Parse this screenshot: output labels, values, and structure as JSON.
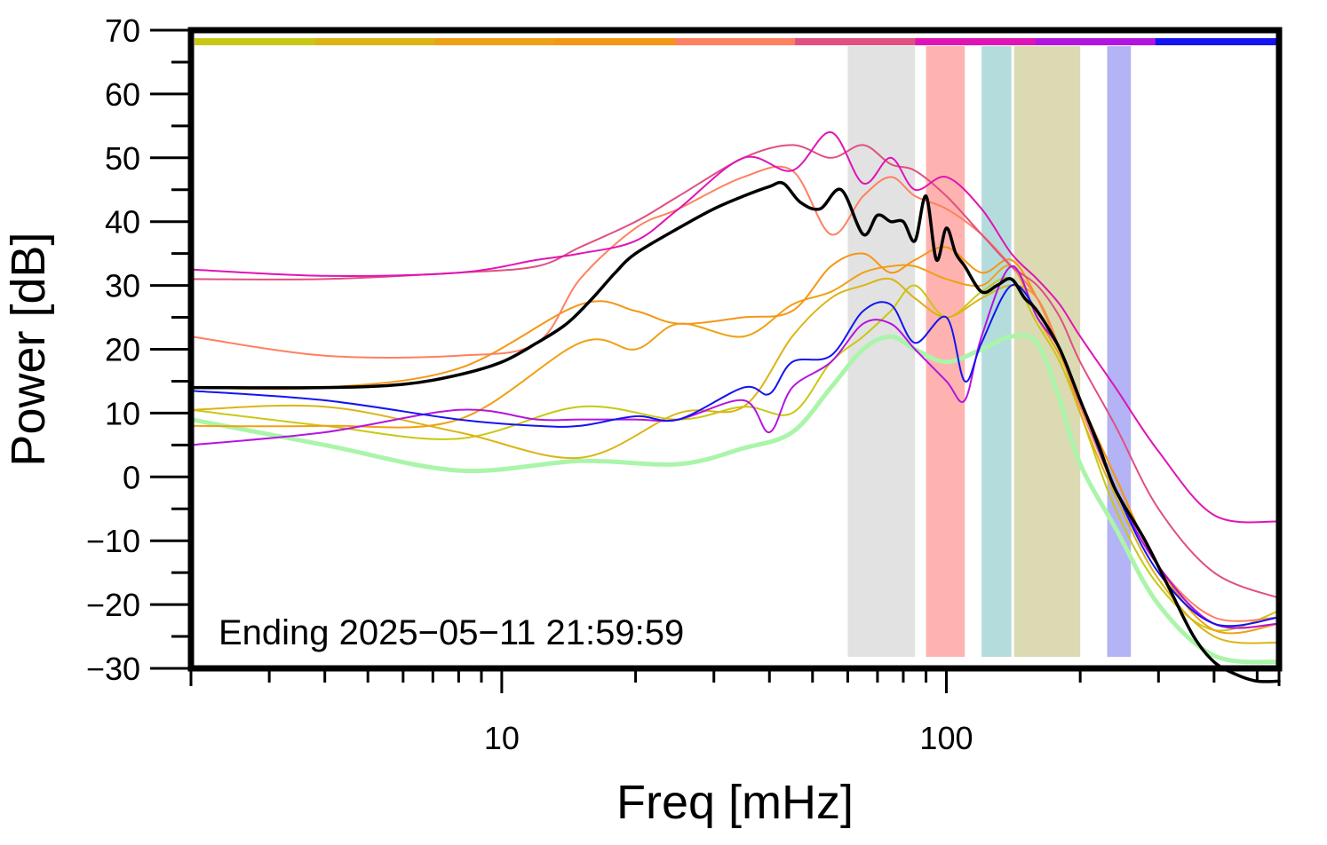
{
  "chart_data": {
    "type": "line",
    "xlabel": "Freq [mHz]",
    "ylabel": "Power [dB]",
    "xscale": "log",
    "xlim": [
      2,
      560
    ],
    "ylim": [
      -30,
      70
    ],
    "grid": false,
    "xticks_major": [
      10,
      100
    ],
    "xticks_major_labels": [
      "10",
      "100"
    ],
    "xticks_minor": [
      3,
      4,
      5,
      6,
      7,
      8,
      9,
      20,
      30,
      40,
      50,
      60,
      70,
      80,
      90,
      200,
      300,
      400,
      500
    ],
    "yticks": [
      70,
      60,
      50,
      40,
      30,
      20,
      10,
      0,
      -10,
      -20,
      -30
    ],
    "ytick_labels": [
      "70",
      "60",
      "50",
      "40",
      "30",
      "20",
      "10",
      "0",
      "−10",
      "−20",
      "−30"
    ],
    "annotation": "Ending 2025−05−11 21:59:59",
    "bands": [
      {
        "x0": 60,
        "x1": 85,
        "color": "#e2e2e2"
      },
      {
        "x0": 90,
        "x1": 110,
        "color": "#ffb3b0"
      },
      {
        "x0": 120,
        "x1": 140,
        "color": "#b5dcdc"
      },
      {
        "x0": 142,
        "x1": 200,
        "color": "#dcdab3"
      },
      {
        "x0": 230,
        "x1": 260,
        "color": "#b3b3f5"
      }
    ],
    "color_bar": [
      "#c8c814",
      "#dcb414",
      "#f0a014",
      "#f59614",
      "#ff8060",
      "#e05080",
      "#e014b4",
      "#b414e0",
      "#1414f0"
    ],
    "series": [
      {
        "color": "#aaf5aa",
        "width": 5,
        "x": [
          2,
          4,
          8,
          15,
          25,
          35,
          45,
          55,
          65,
          75,
          85,
          100,
          120,
          140,
          160,
          180,
          200,
          240,
          300,
          400,
          560
        ],
        "y": [
          9,
          5,
          1,
          2.5,
          2,
          4.5,
          7,
          14,
          20,
          22,
          20,
          18,
          20,
          22,
          21,
          12,
          2,
          -8,
          -20,
          -28,
          -29
        ]
      },
      {
        "color": "#c8c814",
        "width": 2,
        "x": [
          2,
          4,
          8,
          15,
          25,
          35,
          45,
          55,
          65,
          75,
          85,
          100,
          120,
          140,
          160,
          180,
          200,
          240,
          300,
          400,
          560
        ],
        "y": [
          10.5,
          8,
          6,
          11,
          9,
          11,
          10,
          18,
          22,
          26,
          30,
          25,
          29,
          31,
          24,
          18,
          10,
          -5,
          -17,
          -24,
          -21
        ]
      },
      {
        "color": "#dcb414",
        "width": 2,
        "x": [
          2,
          4,
          8,
          15,
          25,
          35,
          45,
          55,
          65,
          75,
          85,
          100,
          120,
          140,
          160,
          180,
          200,
          240,
          300,
          400,
          560
        ],
        "y": [
          10.5,
          11,
          7,
          3,
          10,
          11,
          22,
          28,
          30,
          31,
          28,
          25,
          28,
          30,
          28,
          20,
          10,
          -3,
          -16,
          -25,
          -26
        ]
      },
      {
        "color": "#f0a014",
        "width": 2,
        "x": [
          2,
          4,
          8,
          15,
          20,
          25,
          35,
          45,
          55,
          65,
          75,
          85,
          100,
          120,
          140,
          160,
          180,
          200,
          240,
          300,
          400,
          560
        ],
        "y": [
          8,
          8,
          9,
          21,
          20,
          24,
          22,
          27,
          29,
          32,
          33,
          33,
          31,
          30,
          33,
          25,
          19,
          12,
          0,
          -14,
          -24,
          -23
        ]
      },
      {
        "color": "#f59614",
        "width": 2,
        "x": [
          2,
          4,
          8,
          15,
          20,
          25,
          35,
          45,
          55,
          65,
          75,
          85,
          100,
          120,
          140,
          160,
          180,
          200,
          240,
          300,
          400,
          560
        ],
        "y": [
          14,
          14,
          17,
          27,
          26,
          24,
          25,
          26,
          33,
          35,
          32,
          34,
          36,
          32,
          34,
          28,
          20,
          12,
          0,
          -14,
          -23,
          -23
        ]
      },
      {
        "color": "#ff8060",
        "width": 2,
        "x": [
          2,
          4,
          8,
          12,
          15,
          20,
          25,
          35,
          45,
          55,
          65,
          75,
          85,
          100,
          120,
          140,
          160,
          180,
          200,
          240,
          300,
          400,
          560
        ],
        "y": [
          22,
          19,
          19,
          21,
          31,
          39,
          42,
          47,
          48,
          38,
          44,
          47,
          44,
          42,
          38,
          33,
          28,
          20,
          11,
          -2,
          -14,
          -22,
          -22
        ]
      },
      {
        "color": "#e05080",
        "width": 2,
        "x": [
          2,
          4,
          8,
          12,
          15,
          20,
          25,
          35,
          45,
          55,
          65,
          75,
          85,
          100,
          120,
          140,
          160,
          180,
          200,
          240,
          300,
          400,
          560
        ],
        "y": [
          31,
          31,
          32,
          33,
          36,
          40,
          44,
          50,
          52,
          50,
          52,
          49,
          48,
          44,
          38,
          33,
          30,
          25,
          18,
          8,
          -5,
          -15,
          -19
        ]
      },
      {
        "color": "#e014b4",
        "width": 2,
        "x": [
          2,
          4,
          8,
          12,
          15,
          20,
          25,
          35,
          45,
          55,
          65,
          75,
          85,
          100,
          120,
          140,
          160,
          180,
          200,
          240,
          300,
          400,
          560
        ],
        "y": [
          32.5,
          31.5,
          32,
          34,
          35,
          37,
          42,
          50,
          48,
          54,
          46,
          50,
          45,
          47,
          42,
          35,
          31,
          27,
          22,
          14,
          4,
          -6,
          -7
        ]
      },
      {
        "color": "#b414e0",
        "width": 2,
        "x": [
          2,
          4,
          8,
          12,
          15,
          20,
          25,
          35,
          40,
          45,
          55,
          65,
          75,
          85,
          100,
          110,
          120,
          140,
          160,
          180,
          200,
          240,
          300,
          400,
          560
        ],
        "y": [
          5,
          7,
          10.5,
          9,
          9,
          9,
          9,
          12,
          7,
          14,
          18,
          24,
          24,
          20,
          15,
          12,
          22,
          33,
          25,
          20,
          12,
          -2,
          -14,
          -23,
          -23
        ]
      },
      {
        "color": "#1414f0",
        "width": 2,
        "x": [
          2,
          4,
          8,
          12,
          15,
          20,
          25,
          35,
          40,
          45,
          55,
          65,
          75,
          85,
          100,
          110,
          120,
          140,
          160,
          180,
          200,
          240,
          300,
          400,
          560
        ],
        "y": [
          13.5,
          12,
          9,
          8,
          8,
          9.5,
          9,
          14,
          13,
          18,
          19,
          26,
          27,
          21,
          25,
          15,
          21,
          30,
          26,
          20,
          12,
          -2,
          -15,
          -23,
          -22
        ]
      },
      {
        "color": "#000000",
        "width": 3.5,
        "x": [
          2,
          4,
          6,
          8,
          10,
          12,
          14,
          16,
          18,
          20,
          25,
          30,
          35,
          40,
          43,
          47,
          52,
          58,
          65,
          70,
          75,
          80,
          85,
          90,
          95,
          100,
          105,
          110,
          120,
          130,
          140,
          150,
          160,
          180,
          200,
          220,
          240,
          280,
          320,
          360,
          400,
          450,
          500,
          560
        ],
        "y": [
          14,
          14,
          14.5,
          16,
          18,
          21,
          24,
          28,
          32,
          35,
          39,
          42,
          44,
          45.5,
          46,
          43,
          42,
          45,
          38,
          41,
          40,
          40,
          37,
          44,
          34,
          39,
          35,
          33,
          29,
          30,
          31,
          28,
          26,
          20,
          12,
          5,
          -2,
          -10,
          -18,
          -25,
          -29,
          -31,
          -32,
          -32
        ]
      }
    ]
  }
}
